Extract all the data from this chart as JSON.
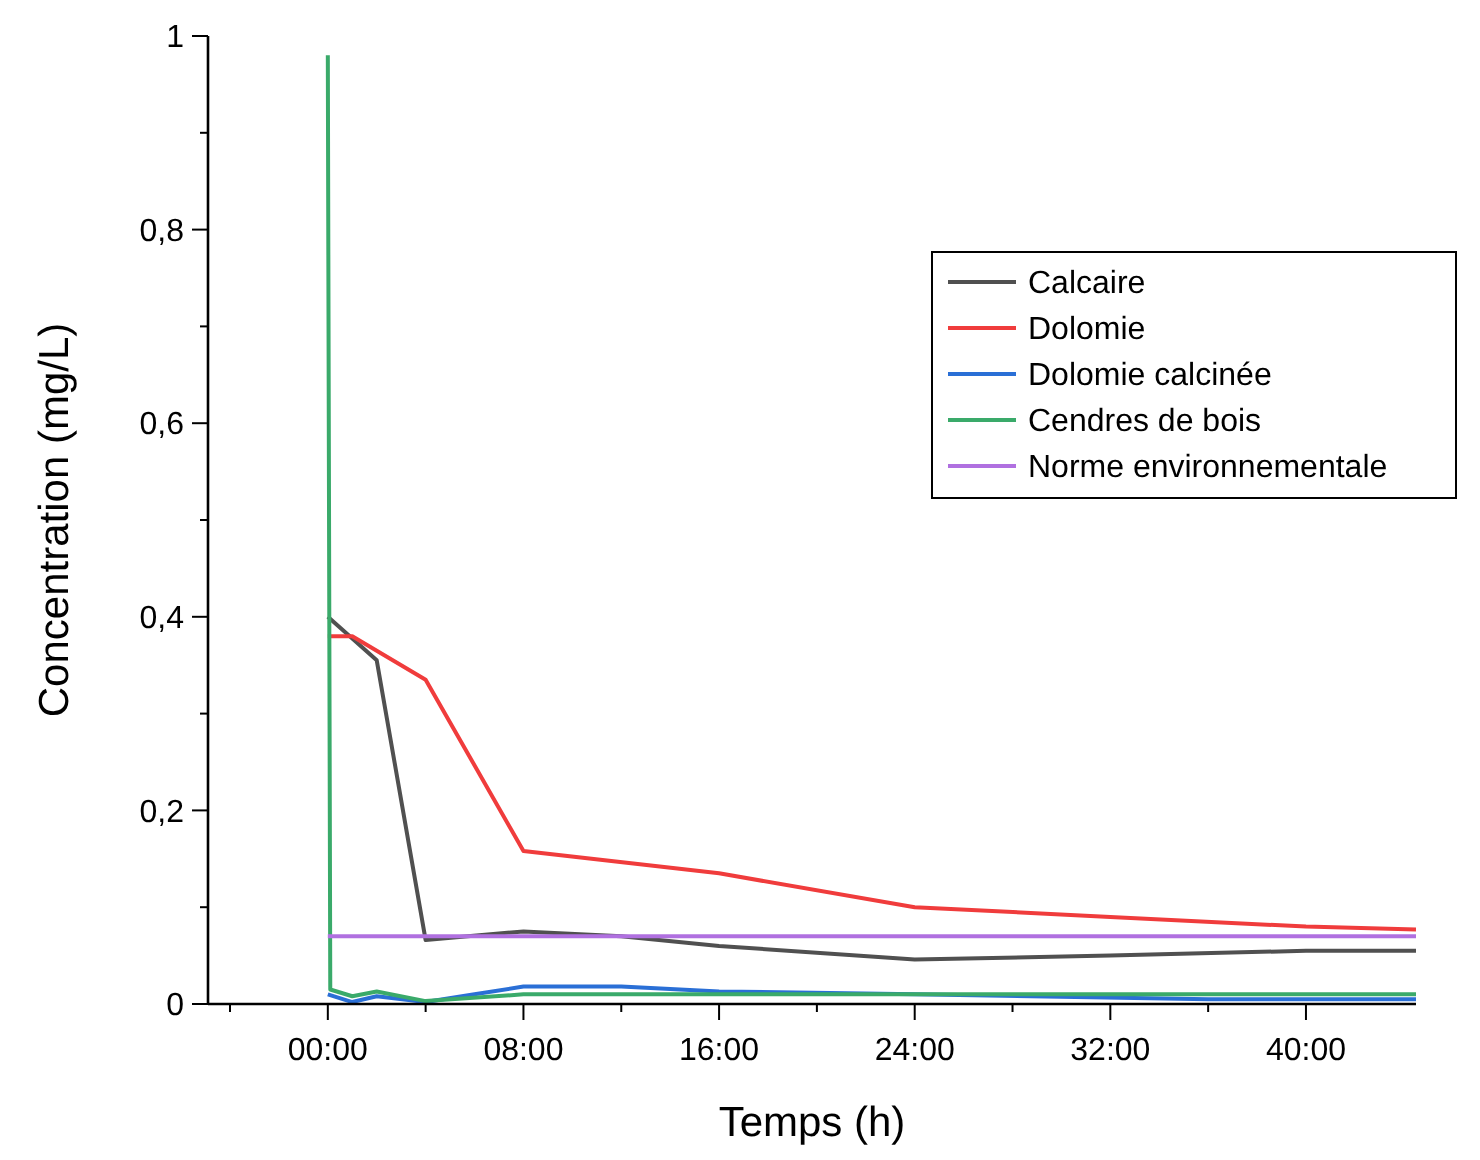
{
  "chart_data": {
    "type": "line",
    "xlabel": "Temps (h)",
    "ylabel": "Concentration (mg/L)",
    "xlim": [
      -4.9,
      44.5
    ],
    "xticks": [
      {
        "value": -4,
        "label": null
      },
      {
        "value": 0,
        "label": "00:00"
      },
      {
        "value": 4,
        "label": null
      },
      {
        "value": 8,
        "label": "08:00"
      },
      {
        "value": 12,
        "label": null
      },
      {
        "value": 16,
        "label": "16:00"
      },
      {
        "value": 20,
        "label": null
      },
      {
        "value": 24,
        "label": "24:00"
      },
      {
        "value": 28,
        "label": null
      },
      {
        "value": 32,
        "label": "32:00"
      },
      {
        "value": 36,
        "label": null
      },
      {
        "value": 40,
        "label": "40:00"
      }
    ],
    "ylim": [
      0,
      1
    ],
    "yticks": [
      0,
      {
        "value": 0.1,
        "label": null
      },
      {
        "value": 0.2,
        "label": "0,2"
      },
      {
        "value": 0.3,
        "label": null
      },
      {
        "value": 0.4,
        "label": "0,4"
      },
      {
        "value": 0.5,
        "label": null
      },
      {
        "value": 0.6,
        "label": "0,6"
      },
      {
        "value": 0.7,
        "label": null
      },
      {
        "value": 0.8,
        "label": "0,8"
      },
      {
        "value": 0.9,
        "label": null
      },
      1
    ],
    "grid": false,
    "legend": "top right",
    "marker": "none",
    "line_style": "solid",
    "series": [
      {
        "name": "Calcaire",
        "color": "#505050",
        "x": [
          0,
          2,
          4,
          8,
          12,
          16,
          24,
          32,
          40,
          44.5
        ],
        "values": [
          0.4,
          0.355,
          0.066,
          0.075,
          0.07,
          0.06,
          0.046,
          0.05,
          0.055,
          0.055
        ]
      },
      {
        "name": "Dolomie",
        "color": "#f03c3c",
        "x": [
          0,
          1,
          4,
          8,
          16,
          24,
          32,
          40,
          44.5
        ],
        "values": [
          0.38,
          0.38,
          0.335,
          0.158,
          0.135,
          0.1,
          0.09,
          0.08,
          0.077
        ]
      },
      {
        "name": "Dolomie calcinée",
        "color": "#2a6fd6",
        "x": [
          0,
          1,
          2,
          4,
          6,
          8,
          12,
          16,
          24,
          36,
          44.5
        ],
        "values": [
          0.01,
          0.002,
          0.008,
          0.002,
          0.01,
          0.018,
          0.018,
          0.013,
          0.01,
          0.005,
          0.005
        ]
      },
      {
        "name": "Cendres de bois",
        "color": "#3aaa6a",
        "x": [
          0,
          0.1,
          1,
          2,
          4,
          8,
          24,
          44.5
        ],
        "values": [
          0.98,
          0.015,
          0.008,
          0.013,
          0.003,
          0.01,
          0.01,
          0.01
        ]
      },
      {
        "name": "Norme environnementale",
        "color": "#b070e0",
        "x": [
          0,
          44.5
        ],
        "values": [
          0.07,
          0.07
        ]
      }
    ]
  }
}
